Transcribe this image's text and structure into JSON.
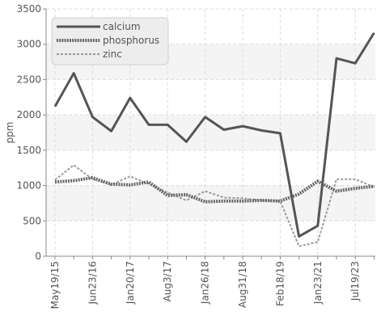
{
  "chart_data": {
    "type": "line",
    "title": "",
    "xlabel": "",
    "ylabel": "ppm",
    "ylim": [
      0,
      3500
    ],
    "yticks": [
      0,
      500,
      1000,
      1500,
      2000,
      2500,
      3000,
      3500
    ],
    "grid": true,
    "legend_position": "top-left",
    "categories": [
      "May19/15",
      "",
      "Jun23/16",
      "",
      "Jan20/17",
      "",
      "Aug3/17",
      "",
      "Jan26/18",
      "",
      "Aug31/18",
      "",
      "Feb18/19",
      "",
      "Jan23/21",
      "",
      "Jul19/23",
      ""
    ],
    "series": [
      {
        "name": "calcium",
        "color": "#555555",
        "style": "solid",
        "values": [
          2120,
          2590,
          1970,
          1770,
          2240,
          1860,
          1860,
          1620,
          1970,
          1790,
          1840,
          1780,
          1740,
          280,
          430,
          2800,
          2730,
          3160
        ]
      },
      {
        "name": "phosphorus",
        "color": "#666666",
        "style": "dotted",
        "values": [
          1050,
          1070,
          1110,
          1020,
          1010,
          1050,
          860,
          870,
          770,
          780,
          780,
          790,
          780,
          880,
          1060,
          920,
          960,
          990
        ]
      },
      {
        "name": "zinc",
        "color": "#9a9a9a",
        "style": "dashed",
        "values": [
          1080,
          1290,
          1090,
          1010,
          1130,
          1020,
          900,
          790,
          920,
          830,
          820,
          790,
          780,
          140,
          200,
          1090,
          1090,
          980
        ]
      }
    ]
  }
}
